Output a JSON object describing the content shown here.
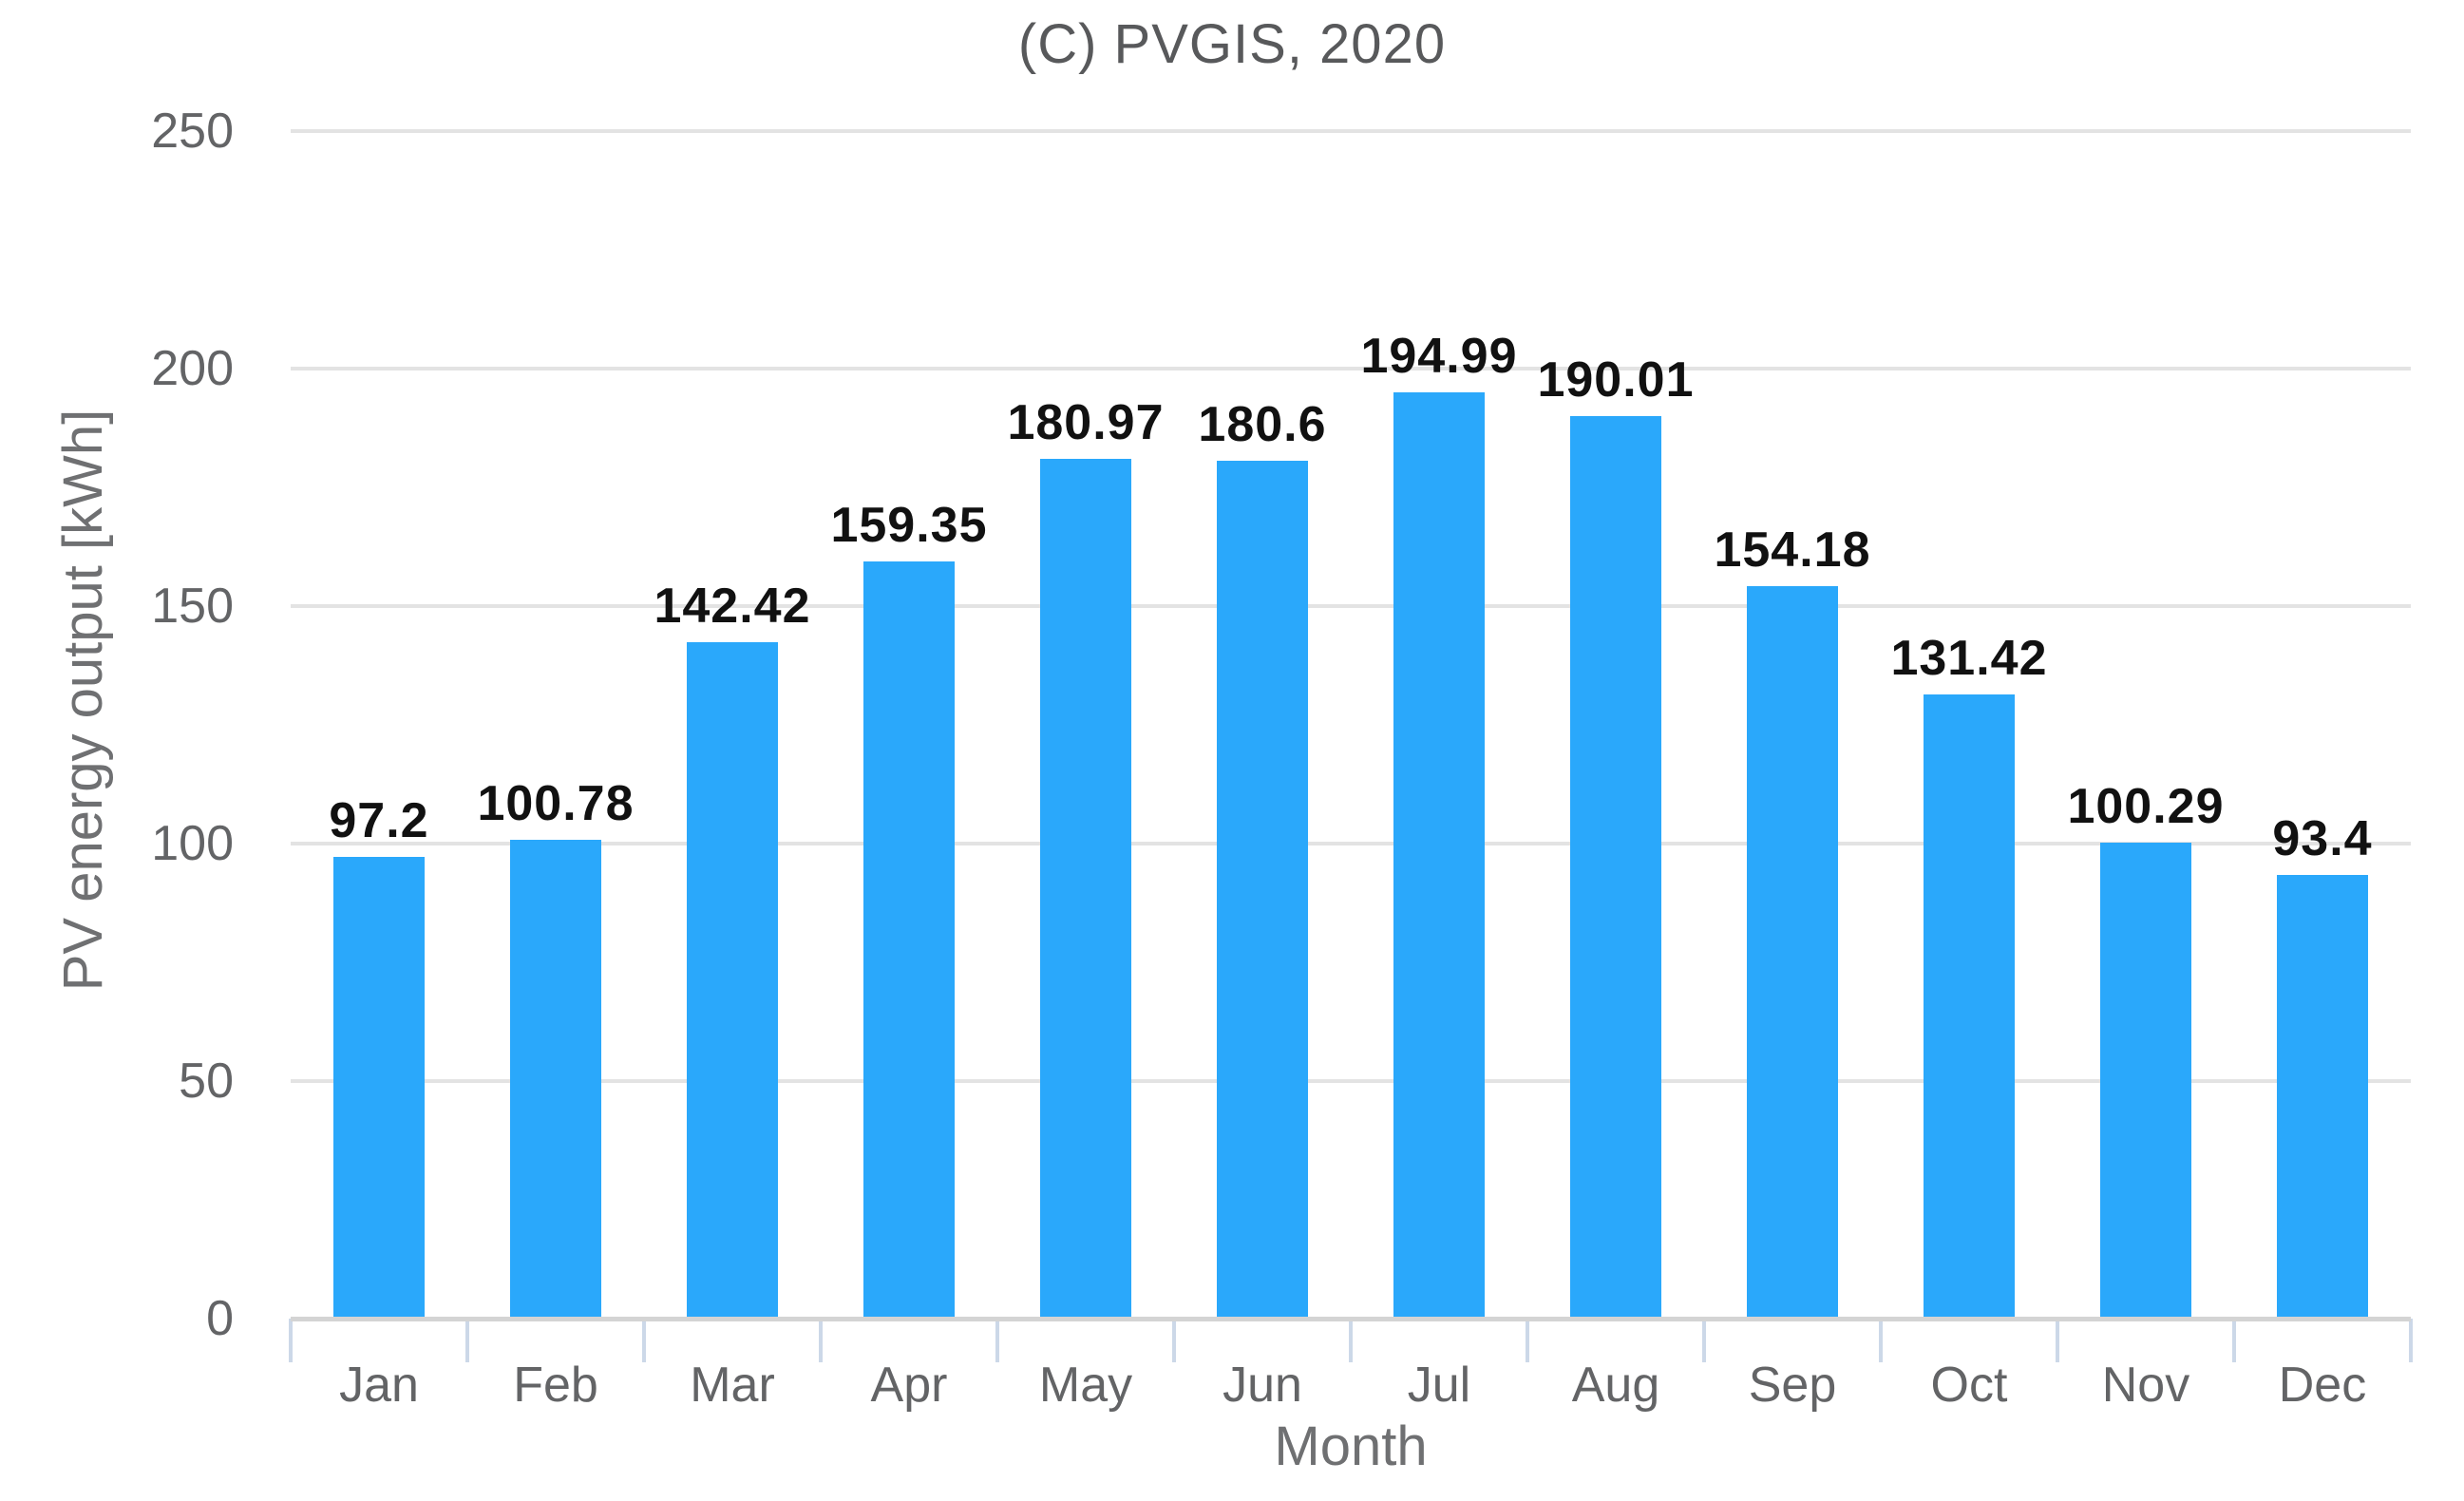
{
  "chart_data": {
    "type": "bar",
    "title": "(C) PVGIS, 2020",
    "xlabel": "Month",
    "ylabel": "PV energy output [kWh]",
    "categories": [
      "Jan",
      "Feb",
      "Mar",
      "Apr",
      "May",
      "Jun",
      "Jul",
      "Aug",
      "Sep",
      "Oct",
      "Nov",
      "Dec"
    ],
    "values": [
      97.2,
      100.78,
      142.42,
      159.35,
      180.97,
      180.6,
      194.99,
      190.01,
      154.18,
      131.42,
      100.29,
      93.4
    ],
    "value_labels": [
      "97.2",
      "100.78",
      "142.42",
      "159.35",
      "180.97",
      "180.6",
      "194.99",
      "190.01",
      "154.18",
      "131.42",
      "100.29",
      "93.4"
    ],
    "ylim": [
      0,
      250
    ],
    "yticks": [
      0,
      50,
      100,
      150,
      200,
      250
    ],
    "grid": true,
    "legend": "none",
    "colors": {
      "bar": "#2aa8fb",
      "gridline": "#e3e3e3",
      "axis_baseline": "#d4d4d4",
      "tick_mark": "#ccd8e8",
      "title_text": "#58595b",
      "axis_title_text": "#6f7072",
      "tick_label_text": "#636466",
      "value_label_text": "#111111",
      "background": "#ffffff"
    }
  }
}
